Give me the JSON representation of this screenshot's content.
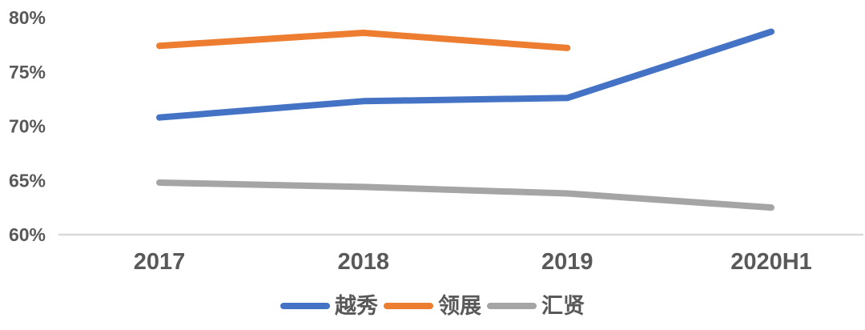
{
  "chart_data": {
    "type": "line",
    "title": "",
    "categories": [
      "2017",
      "2018",
      "2019",
      "2020H1"
    ],
    "series": [
      {
        "name": "越秀",
        "color": "#4472C4",
        "values": [
          70.8,
          72.3,
          72.6,
          78.7
        ]
      },
      {
        "name": "领展",
        "color": "#ED7D31",
        "values": [
          77.4,
          78.6,
          77.2,
          null
        ]
      },
      {
        "name": "汇贤",
        "color": "#A5A5A5",
        "values": [
          64.8,
          64.4,
          63.8,
          62.5
        ]
      }
    ],
    "ytick_labels": [
      "60%",
      "65%",
      "70%",
      "75%",
      "80%"
    ],
    "ytick_values": [
      60,
      65,
      70,
      75,
      80
    ],
    "ylim": [
      60,
      80
    ],
    "grid": "baseline-only",
    "legend_position": "bottom-center"
  },
  "colors": {
    "baseline": "#D9D9D9",
    "tick_text": "#595959",
    "background": "#FFFFFF"
  }
}
